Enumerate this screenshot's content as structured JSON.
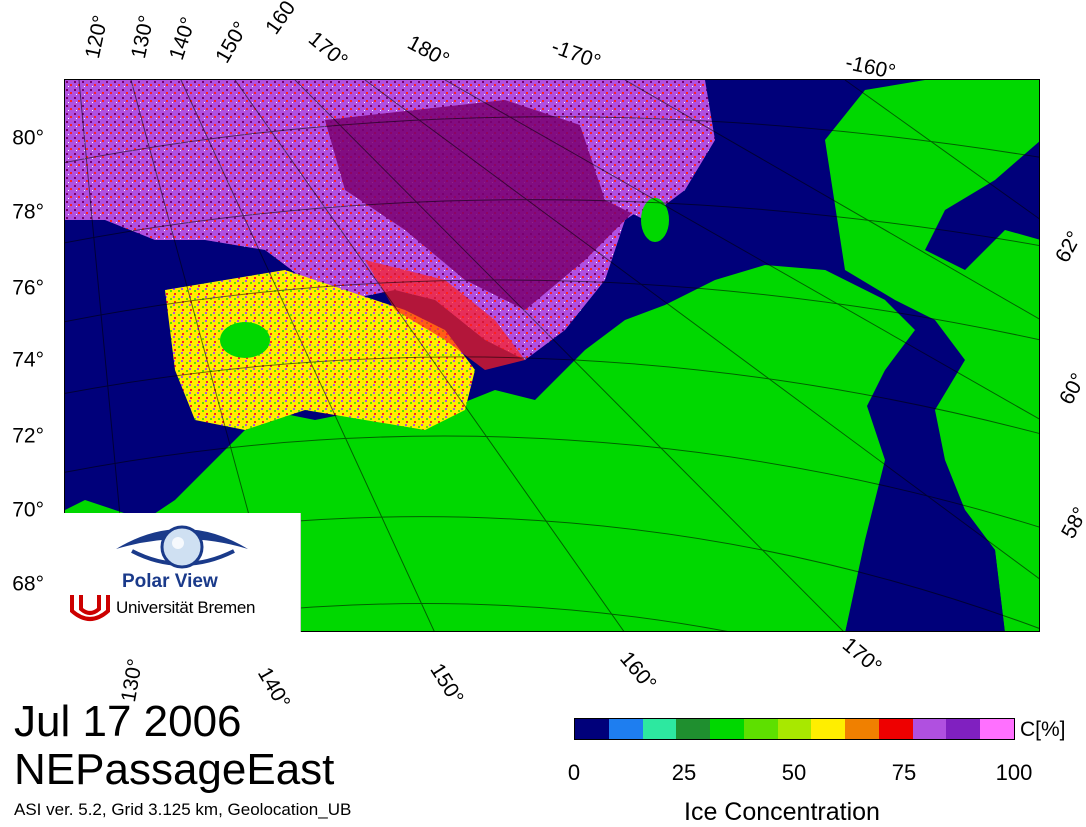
{
  "map": {
    "date": "Jul 17 2006",
    "region": "NEPassageEast",
    "info": "ASI ver. 5.2,  Grid 3.125 km, Geolocation_UB",
    "top_labels": [
      "120°",
      "130°",
      "140°",
      "150°",
      "160°",
      "170°",
      "180°",
      "-170°",
      "-160°"
    ],
    "left_labels": [
      "80°",
      "78°",
      "76°",
      "74°",
      "72°",
      "70°",
      "68°"
    ],
    "right_labels": [
      "62°",
      "60°",
      "58°"
    ],
    "bottom_labels": [
      "130°",
      "140°",
      "150°",
      "160°",
      "170°"
    ]
  },
  "logo": {
    "title": "Polar View",
    "institution": "Universität Bremen"
  },
  "legend": {
    "unit": "C[%]",
    "title": "Ice Concentration",
    "ticks": [
      "0",
      "25",
      "50",
      "75",
      "100"
    ],
    "colors": [
      "#00007a",
      "#1e7ef0",
      "#2de8a0",
      "#1f8f2f",
      "#00d800",
      "#5ee000",
      "#a8e800",
      "#ffee00",
      "#f08000",
      "#ee0000",
      "#b050e0",
      "#8020c0",
      "#ff70ff"
    ]
  },
  "colors": {
    "water": "#00007a",
    "land": "#00d800",
    "ice_full": "#7a0070",
    "ice_high": "#b050e0",
    "ice_mid": "#ff2020",
    "ice_low": "#ffee00"
  }
}
